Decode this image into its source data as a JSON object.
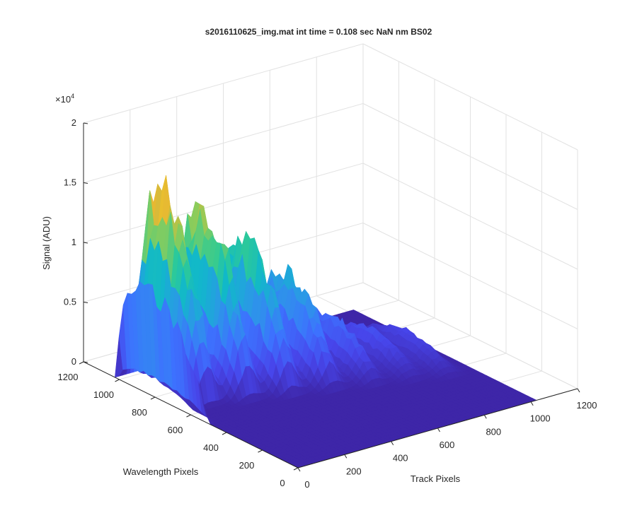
{
  "chart_data": {
    "type": "surface",
    "title": "s2016110625_img.mat int time = 0.108 sec  NaN nm BS02",
    "zlabel": "Signal (ADU)",
    "xlabel": "Track Pixels",
    "ylabel": "Wavelength Pixels",
    "z_multiplier": "×10",
    "z_exponent": "4",
    "xlim": [
      0,
      1200
    ],
    "ylim": [
      0,
      1200
    ],
    "zlim": [
      0,
      20000
    ],
    "x_ticks": [
      "0",
      "200",
      "400",
      "600",
      "800",
      "1000",
      "1200"
    ],
    "y_ticks": [
      "0",
      "200",
      "400",
      "600",
      "800",
      "1000",
      "1200"
    ],
    "z_ticks": [
      "0",
      "0.5",
      "1",
      "1.5",
      "2"
    ],
    "grid": true,
    "colormap": "parula",
    "surface_extent": {
      "x": [
        0,
        1024
      ],
      "y": [
        0,
        1024
      ]
    },
    "bands": [
      {
        "track_center": 110,
        "peak_signal": 16000,
        "wavelength_peak": 900
      },
      {
        "track_center": 250,
        "peak_signal": 13500,
        "wavelength_peak": 850
      },
      {
        "track_center": 390,
        "peak_signal": 11000,
        "wavelength_peak": 800
      },
      {
        "track_center": 530,
        "peak_signal": 8000,
        "wavelength_peak": 750
      },
      {
        "track_center": 670,
        "peak_signal": 4000,
        "wavelength_peak": 700
      },
      {
        "track_center": 800,
        "peak_signal": 2500,
        "wavelength_peak": 650
      },
      {
        "track_center": 920,
        "peak_signal": 2000,
        "wavelength_peak": 600
      }
    ],
    "edge_profile_peak_signal": 8500
  },
  "colors": {
    "floor": "#3E26A8",
    "grid": "#e2e2e2",
    "axis": "#262626"
  }
}
